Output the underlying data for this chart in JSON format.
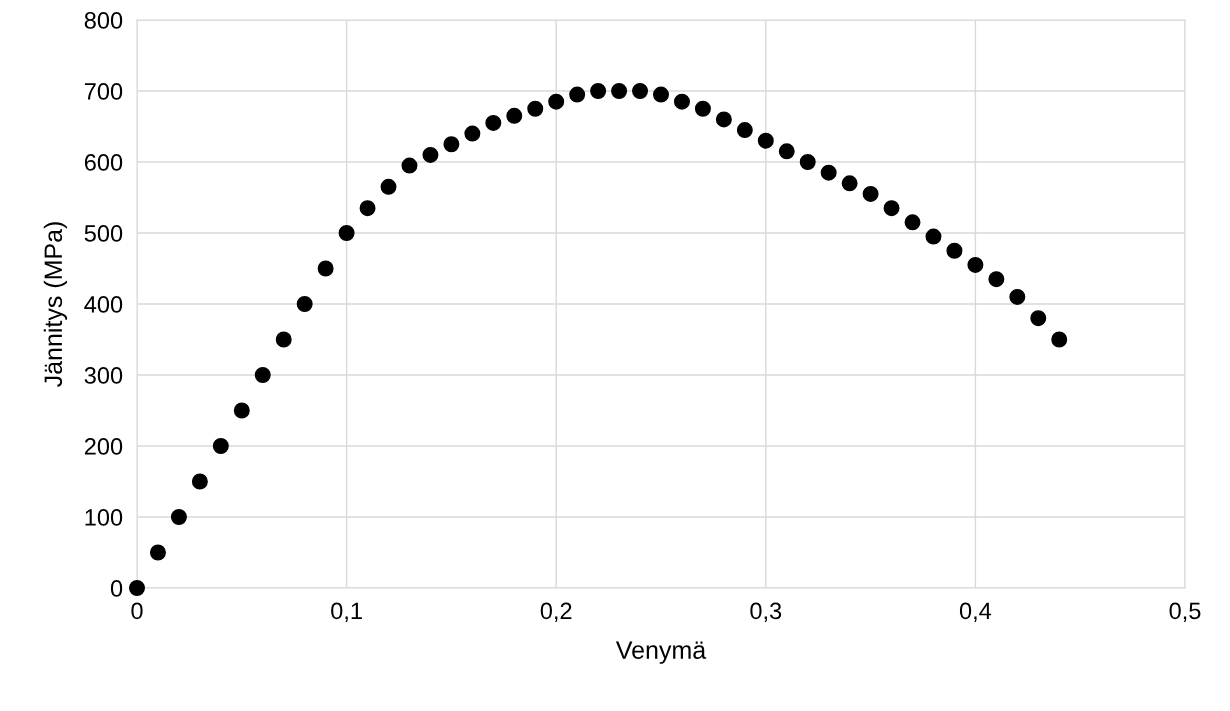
{
  "chart_data": {
    "type": "scatter",
    "xlabel": "Venymä",
    "ylabel": "Jännitys (MPa)",
    "x": [
      0,
      0.01,
      0.02,
      0.03,
      0.04,
      0.05,
      0.06,
      0.07,
      0.08,
      0.09,
      0.1,
      0.11,
      0.12,
      0.13,
      0.14,
      0.15,
      0.16,
      0.17,
      0.18,
      0.19,
      0.2,
      0.21,
      0.22,
      0.23,
      0.24,
      0.25,
      0.26,
      0.27,
      0.28,
      0.29,
      0.3,
      0.31,
      0.32,
      0.33,
      0.34,
      0.35,
      0.36,
      0.37,
      0.38,
      0.39,
      0.4,
      0.41,
      0.42,
      0.43,
      0.44
    ],
    "series": [
      {
        "color": "#000000",
        "values": [
          0,
          50,
          100,
          150,
          200,
          250,
          300,
          350,
          400,
          450,
          500,
          535,
          565,
          595,
          610,
          625,
          640,
          655,
          665,
          675,
          685,
          695,
          700,
          700,
          700,
          695,
          685,
          675,
          660,
          645,
          630,
          615,
          600,
          585,
          570,
          555,
          535,
          515,
          495,
          475,
          455,
          435,
          410,
          380,
          350
        ]
      }
    ],
    "xlim": [
      0,
      0.5
    ],
    "ylim": [
      0,
      800
    ],
    "xticks": [
      0,
      {
        "value": 0.1,
        "label": "0,1"
      },
      {
        "value": 0.2,
        "label": "0,2"
      },
      {
        "value": 0.3,
        "label": "0,3"
      },
      {
        "value": 0.4,
        "label": "0,4"
      },
      {
        "value": 0.5,
        "label": "0,5"
      }
    ],
    "yticks": [
      0,
      100,
      200,
      300,
      400,
      500,
      600,
      700,
      800
    ],
    "grid": true,
    "marker": "circle"
  }
}
